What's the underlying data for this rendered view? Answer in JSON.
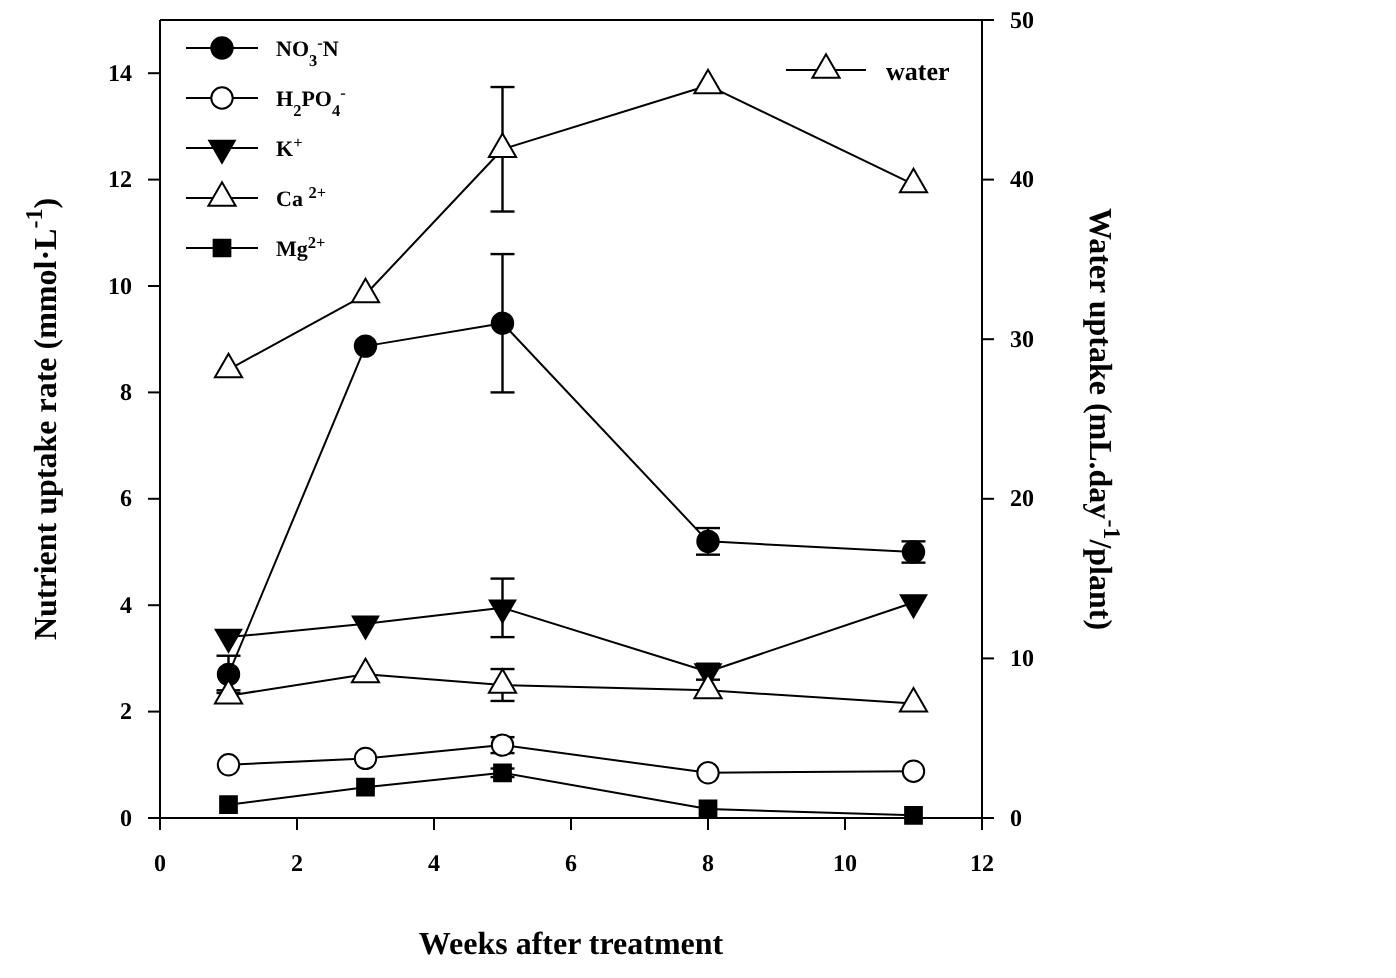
{
  "chart_data": {
    "type": "line",
    "xlabel": "Weeks after treatment",
    "ylabel": "Nutrient uptake rate (mmol·L$^{-1}$)",
    "y2label": "Water uptake (mL.day$^{-1}$/plant)",
    "xlim": [
      0,
      12
    ],
    "xticks": [
      0,
      2,
      4,
      6,
      8,
      10,
      12
    ],
    "ylim": [
      0,
      15
    ],
    "yticks": [
      0,
      2,
      4,
      6,
      8,
      10,
      12,
      14
    ],
    "y2lim": [
      0,
      50
    ],
    "y2ticks": [
      0,
      10,
      20,
      30,
      40,
      50
    ],
    "x": [
      1,
      3,
      5,
      8,
      11
    ],
    "grid": false,
    "legend": "top left",
    "line_style": "solid",
    "series": [
      {
        "name": "NO$_{3}$$^{-}$N",
        "color": "#000000",
        "marker": "circle",
        "values": [
          2.7,
          8.87,
          9.3,
          5.2,
          5.0
        ],
        "errors": [
          0.35,
          null,
          1.3,
          0.25,
          0.2
        ]
      },
      {
        "name": "H$_{2}$PO$_{4}$$^{-}$",
        "color": "#000000",
        "marker": "circle-open",
        "values": [
          1.0,
          1.12,
          1.37,
          0.85,
          0.88
        ],
        "errors": [
          null,
          null,
          0.15,
          null,
          null
        ]
      },
      {
        "name": "K$^{+}$",
        "color": "#000000",
        "marker": "triangle-down",
        "values": [
          3.4,
          3.65,
          3.95,
          2.75,
          4.05
        ],
        "errors": [
          null,
          null,
          0.55,
          0.15,
          null
        ]
      },
      {
        "name": "Ca $^{2+}$",
        "color": "#000000",
        "marker": "triangle-open",
        "values": [
          2.3,
          2.7,
          2.5,
          2.4,
          2.15
        ],
        "errors": [
          0.1,
          null,
          0.3,
          null,
          null
        ]
      },
      {
        "name": "Mg$^{2+}$",
        "color": "#000000",
        "marker": "square",
        "values": [
          0.25,
          0.58,
          0.85,
          0.17,
          0.05
        ],
        "errors": [
          null,
          null,
          0.08,
          null,
          null
        ]
      },
      {
        "name": "water",
        "color": "#000000",
        "marker": "triangle-open",
        "axis": "y2",
        "values": [
          28.1,
          32.8,
          41.9,
          45.9,
          39.7
        ],
        "errors": [
          null,
          null,
          3.9,
          null,
          null
        ]
      }
    ]
  }
}
